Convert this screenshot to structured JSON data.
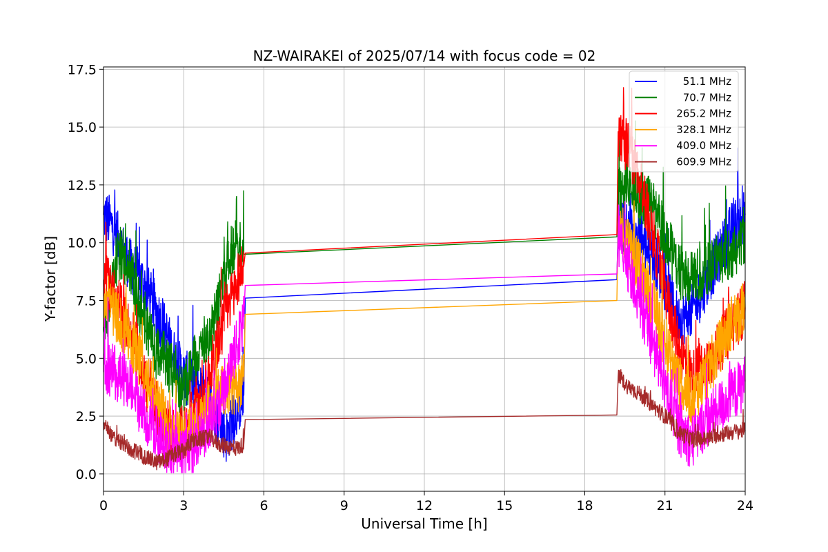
{
  "chart_data": {
    "type": "line",
    "title": "NZ-WAIRAKEI of 2025/07/14 with focus code = 02",
    "xlabel": "Universal Time [h]",
    "ylabel": "Y-factor [dB]",
    "xlim": [
      0,
      24
    ],
    "ylim": [
      -0.75,
      17.6
    ],
    "xticks": [
      0,
      3,
      6,
      9,
      12,
      15,
      18,
      21,
      24
    ],
    "xtick_labels": [
      "0",
      "3",
      "6",
      "9",
      "12",
      "15",
      "18",
      "21",
      "24"
    ],
    "yticks": [
      0,
      2.5,
      5,
      7.5,
      10,
      12.5,
      15,
      17.5
    ],
    "ytick_labels": [
      "0.0",
      "2.5",
      "5.0",
      "7.5",
      "10.0",
      "12.5",
      "15.0",
      "17.5"
    ],
    "grid": true,
    "legend_position": "top-right",
    "series": [
      {
        "name": "51.1 MHz",
        "color": "#0000ff",
        "points": [
          [
            0,
            11.2
          ],
          [
            0.3,
            10.8
          ],
          [
            0.6,
            10.0
          ],
          [
            1.0,
            9.0
          ],
          [
            1.3,
            8.6
          ],
          [
            1.6,
            8.0
          ],
          [
            2.0,
            7.0
          ],
          [
            2.3,
            6.2
          ],
          [
            2.6,
            5.2
          ],
          [
            3.0,
            4.2
          ],
          [
            3.3,
            4.0
          ],
          [
            3.6,
            3.8
          ],
          [
            4.0,
            3.2
          ],
          [
            4.3,
            2.4
          ],
          [
            4.6,
            1.6
          ],
          [
            5.0,
            2.8
          ],
          [
            5.25,
            3.4
          ],
          [
            5.3,
            7.6
          ],
          [
            19.2,
            8.4
          ],
          [
            19.25,
            10.8
          ],
          [
            19.6,
            10.6
          ],
          [
            20.0,
            10.2
          ],
          [
            20.5,
            9.6
          ],
          [
            21.0,
            8.2
          ],
          [
            21.5,
            6.6
          ],
          [
            22.0,
            7.0
          ],
          [
            22.5,
            8.2
          ],
          [
            23.0,
            9.4
          ],
          [
            23.5,
            10.6
          ],
          [
            24.0,
            11.2
          ]
        ]
      },
      {
        "name": "70.7 MHz",
        "color": "#008000",
        "points": [
          [
            0,
            6.2
          ],
          [
            0.3,
            8.0
          ],
          [
            0.6,
            9.6
          ],
          [
            1.0,
            9.0
          ],
          [
            1.3,
            7.2
          ],
          [
            1.6,
            6.2
          ],
          [
            2.0,
            5.2
          ],
          [
            2.3,
            5.0
          ],
          [
            2.6,
            4.4
          ],
          [
            3.0,
            3.4
          ],
          [
            3.3,
            4.6
          ],
          [
            3.6,
            5.4
          ],
          [
            4.0,
            6.2
          ],
          [
            4.3,
            7.4
          ],
          [
            4.6,
            8.8
          ],
          [
            5.0,
            10.4
          ],
          [
            5.25,
            9.5
          ],
          [
            5.3,
            9.5
          ],
          [
            19.2,
            10.25
          ],
          [
            19.25,
            12.0
          ],
          [
            19.6,
            12.6
          ],
          [
            20.0,
            12.0
          ],
          [
            20.5,
            11.6
          ],
          [
            21.0,
            10.4
          ],
          [
            21.5,
            8.8
          ],
          [
            22.0,
            8.4
          ],
          [
            22.5,
            8.8
          ],
          [
            23.0,
            9.2
          ],
          [
            23.5,
            9.6
          ],
          [
            24.0,
            10.0
          ]
        ]
      },
      {
        "name": "265.2 MHz",
        "color": "#ff0000",
        "points": [
          [
            0,
            8.4
          ],
          [
            0.3,
            8.0
          ],
          [
            0.6,
            7.2
          ],
          [
            1.0,
            6.2
          ],
          [
            1.3,
            5.2
          ],
          [
            1.6,
            3.8
          ],
          [
            2.0,
            2.8
          ],
          [
            2.3,
            2.2
          ],
          [
            2.6,
            1.6
          ],
          [
            3.0,
            1.8
          ],
          [
            3.3,
            2.4
          ],
          [
            3.6,
            3.0
          ],
          [
            4.0,
            4.4
          ],
          [
            4.3,
            5.8
          ],
          [
            4.6,
            7.0
          ],
          [
            5.0,
            8.4
          ],
          [
            5.25,
            9.0
          ],
          [
            5.3,
            9.55
          ],
          [
            19.2,
            10.35
          ],
          [
            19.25,
            14.8
          ],
          [
            19.6,
            14.2
          ],
          [
            20.0,
            13.0
          ],
          [
            20.5,
            10.6
          ],
          [
            21.0,
            8.0
          ],
          [
            21.5,
            5.6
          ],
          [
            22.0,
            4.2
          ],
          [
            22.5,
            4.6
          ],
          [
            23.0,
            5.4
          ],
          [
            23.5,
            6.4
          ],
          [
            24.0,
            7.2
          ]
        ]
      },
      {
        "name": "328.1 MHz",
        "color": "#ffa500",
        "points": [
          [
            0,
            7.6
          ],
          [
            0.3,
            7.2
          ],
          [
            0.6,
            6.6
          ],
          [
            1.0,
            5.8
          ],
          [
            1.3,
            5.0
          ],
          [
            1.6,
            4.2
          ],
          [
            2.0,
            3.2
          ],
          [
            2.3,
            2.4
          ],
          [
            2.6,
            1.8
          ],
          [
            3.0,
            1.6
          ],
          [
            3.3,
            2.0
          ],
          [
            3.6,
            2.6
          ],
          [
            4.0,
            3.0
          ],
          [
            4.3,
            3.4
          ],
          [
            4.6,
            3.6
          ],
          [
            5.0,
            3.8
          ],
          [
            5.25,
            4.0
          ],
          [
            5.3,
            6.9
          ],
          [
            19.2,
            7.5
          ],
          [
            19.25,
            10.8
          ],
          [
            19.6,
            10.2
          ],
          [
            20.0,
            9.0
          ],
          [
            20.5,
            7.6
          ],
          [
            21.0,
            5.6
          ],
          [
            21.5,
            4.0
          ],
          [
            22.0,
            3.2
          ],
          [
            22.5,
            4.2
          ],
          [
            23.0,
            5.4
          ],
          [
            23.5,
            6.6
          ],
          [
            24.0,
            7.2
          ]
        ]
      },
      {
        "name": "409.0 MHz",
        "color": "#ff00ff",
        "points": [
          [
            0,
            4.4
          ],
          [
            0.3,
            4.6
          ],
          [
            0.6,
            4.2
          ],
          [
            1.0,
            3.8
          ],
          [
            1.3,
            3.0
          ],
          [
            1.6,
            2.4
          ],
          [
            2.0,
            1.8
          ],
          [
            2.3,
            1.2
          ],
          [
            2.6,
            0.9
          ],
          [
            3.0,
            0.8
          ],
          [
            3.3,
            1.0
          ],
          [
            3.6,
            1.6
          ],
          [
            4.0,
            2.2
          ],
          [
            4.3,
            3.0
          ],
          [
            4.6,
            4.2
          ],
          [
            5.0,
            5.6
          ],
          [
            5.25,
            6.8
          ],
          [
            5.3,
            8.15
          ],
          [
            19.2,
            8.65
          ],
          [
            19.25,
            10.2
          ],
          [
            19.6,
            9.0
          ],
          [
            20.0,
            7.6
          ],
          [
            20.5,
            5.8
          ],
          [
            21.0,
            3.8
          ],
          [
            21.5,
            2.0
          ],
          [
            22.0,
            1.4
          ],
          [
            22.5,
            2.2
          ],
          [
            23.0,
            2.8
          ],
          [
            23.5,
            3.4
          ],
          [
            24.0,
            4.0
          ]
        ]
      },
      {
        "name": "609.9 MHz",
        "color": "#a52a2a",
        "points": [
          [
            0,
            2.2
          ],
          [
            0.3,
            1.7
          ],
          [
            0.6,
            1.4
          ],
          [
            1.0,
            1.1
          ],
          [
            1.3,
            0.9
          ],
          [
            1.6,
            0.7
          ],
          [
            2.0,
            0.5
          ],
          [
            2.3,
            0.6
          ],
          [
            2.6,
            0.8
          ],
          [
            3.0,
            1.0
          ],
          [
            3.3,
            1.4
          ],
          [
            3.6,
            1.5
          ],
          [
            4.0,
            1.6
          ],
          [
            4.3,
            1.3
          ],
          [
            4.6,
            1.2
          ],
          [
            5.0,
            1.1
          ],
          [
            5.25,
            1.3
          ],
          [
            5.3,
            2.35
          ],
          [
            19.2,
            2.55
          ],
          [
            19.25,
            4.2
          ],
          [
            19.6,
            3.8
          ],
          [
            20.0,
            3.5
          ],
          [
            20.5,
            3.0
          ],
          [
            21.0,
            2.5
          ],
          [
            21.5,
            1.8
          ],
          [
            22.0,
            1.5
          ],
          [
            22.5,
            1.5
          ],
          [
            23.0,
            1.7
          ],
          [
            23.5,
            1.8
          ],
          [
            24.0,
            1.9
          ]
        ]
      }
    ]
  }
}
